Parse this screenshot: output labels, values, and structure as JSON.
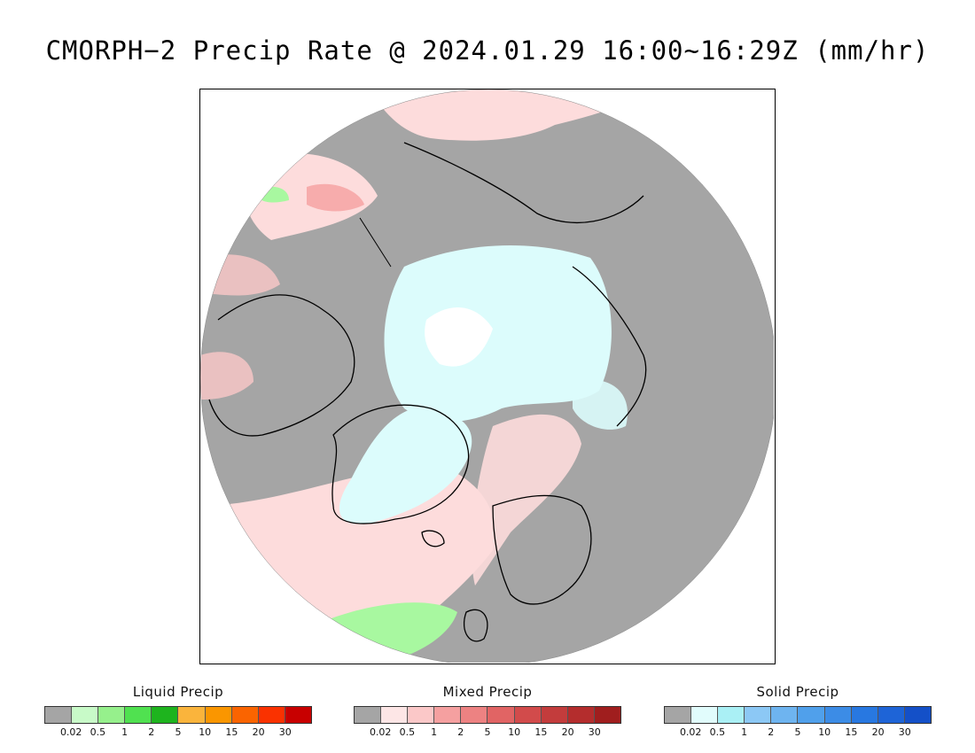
{
  "title": "CMORPH−2 Precip Rate @ 2024.01.29 16:00~16:29Z (mm/hr)",
  "map": {
    "projection": "north-polar-stereographic",
    "background_color": "#a5a5a5",
    "ocean_light_pink": "#fddcdc",
    "snow_cyan": "#dcfcfc",
    "snow_white": "#ffffff",
    "rain_green": "#a8f8a0"
  },
  "legends": [
    {
      "title": "Liquid Precip",
      "colors": [
        "#a5a5a5",
        "#c8fac8",
        "#96f08c",
        "#50e150",
        "#1eb41e",
        "#fab43c",
        "#fa9600",
        "#fa6400",
        "#fa3200",
        "#c80000"
      ],
      "ticks": [
        "0.02",
        "0.5",
        "1",
        "2",
        "5",
        "10",
        "15",
        "20",
        "30"
      ]
    },
    {
      "title": "Mixed Precip",
      "colors": [
        "#a5a5a5",
        "#fde6e6",
        "#fbc8c8",
        "#f5a0a0",
        "#ed8282",
        "#e16464",
        "#d24b4b",
        "#c33c3c",
        "#b42d2d",
        "#a01e1e"
      ],
      "ticks": [
        "0.02",
        "0.5",
        "1",
        "2",
        "5",
        "10",
        "15",
        "20",
        "30"
      ]
    },
    {
      "title": "Solid Precip",
      "colors": [
        "#a5a5a5",
        "#e1fcfc",
        "#aaf0f5",
        "#8cc8f5",
        "#6eb4f0",
        "#50a0eb",
        "#3c8ce6",
        "#2878e1",
        "#1e64d7",
        "#1450c8"
      ],
      "ticks": [
        "0.02",
        "0.5",
        "1",
        "2",
        "5",
        "10",
        "15",
        "20",
        "30"
      ]
    }
  ]
}
